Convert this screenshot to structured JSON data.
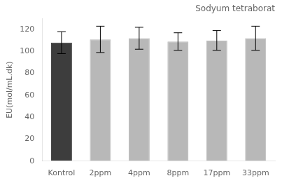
{
  "chart_data": {
    "type": "bar",
    "annotation": "Sodyum tetraborat",
    "ylabel": "EU(mol/mL.dk)",
    "categories": [
      "Kontrol",
      "2ppm",
      "4ppm",
      "8ppm",
      "17ppm",
      "33ppm"
    ],
    "values": [
      108,
      111,
      112,
      109,
      110,
      112
    ],
    "errors": [
      10,
      12,
      10,
      8,
      9,
      11
    ],
    "colors": [
      "#3d3d3d",
      "#b8b8b8",
      "#b8b8b8",
      "#b8b8b8",
      "#b8b8b8",
      "#b8b8b8"
    ],
    "ylim": [
      0,
      130
    ],
    "yticks": [
      0,
      20,
      40,
      60,
      80,
      100,
      120
    ],
    "grid": false
  }
}
